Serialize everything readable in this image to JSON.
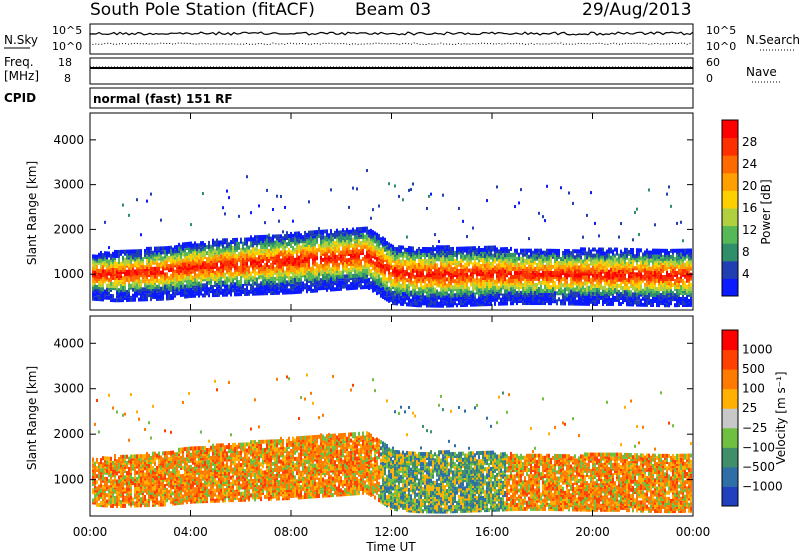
{
  "header": {
    "station": "South Pole Station (fitACF)",
    "beam": "Beam 03",
    "date": "29/Aug/2013"
  },
  "strips": {
    "nsky_label": "N.Sky",
    "nsky_ticks": [
      "10^5",
      "10^0"
    ],
    "nsearch_label": "N.Search",
    "nsearch_ticks": [
      "10^5",
      "10^0"
    ],
    "freq_label": "Freq.",
    "freq_unit": "[MHz]",
    "freq_ticks": [
      "18",
      "8"
    ],
    "nave_label": "Nave",
    "nave_ticks": [
      "60",
      "0"
    ],
    "cpid_label": "CPID",
    "cpid_value": "normal (fast) 151 RF"
  },
  "chart_data": [
    {
      "type": "heatmap",
      "name": "power",
      "ylabel": "Slant Range [km]",
      "ylim": [
        200,
        4600
      ],
      "y_ticks": [
        1000,
        2000,
        3000,
        4000
      ],
      "xlim": [
        0,
        24
      ],
      "colorbar": {
        "label": "Power [dB]",
        "ticks": [
          "28",
          "24",
          "20",
          "16",
          "12",
          "8",
          "4"
        ],
        "colors": [
          "#0b1aff",
          "#1f3fb2",
          "#2f8f6a",
          "#56b856",
          "#b0d040",
          "#ffd000",
          "#ffa000",
          "#ff6a00",
          "#ff3000",
          "#ff0000"
        ]
      },
      "band_lower_km": [
        800,
        760,
        780,
        800,
        860,
        880,
        900,
        920,
        940,
        980,
        1020,
        1060,
        700,
        650,
        640,
        660,
        680,
        700,
        700,
        690,
        680,
        680,
        660,
        650,
        660
      ],
      "band_upper_km": [
        1300,
        1350,
        1400,
        1450,
        1550,
        1600,
        1650,
        1700,
        1750,
        1800,
        1850,
        1900,
        1500,
        1450,
        1450,
        1450,
        1450,
        1400,
        1400,
        1400,
        1400,
        1400,
        1400,
        1400,
        1400
      ]
    },
    {
      "type": "heatmap",
      "name": "velocity",
      "ylabel": "Slant Range [km]",
      "xlabel": "Time UT",
      "ylim": [
        200,
        4600
      ],
      "y_ticks": [
        1000,
        2000,
        3000,
        4000
      ],
      "xlim": [
        0,
        24
      ],
      "x_ticks": [
        "00:00",
        "04:00",
        "08:00",
        "12:00",
        "16:00",
        "20:00",
        "00:00"
      ],
      "colorbar": {
        "label": "Velocity [m s⁻¹]",
        "ticks": [
          "1000",
          "500",
          "100",
          "25",
          "−25",
          "−100",
          "−500",
          "−1000"
        ],
        "colors": [
          "#2040c0",
          "#2f6fa8",
          "#3f8f6a",
          "#6fc040",
          "#c8c8c8",
          "#ffb000",
          "#ff7a00",
          "#ff4000",
          "#ff0000"
        ]
      }
    }
  ]
}
